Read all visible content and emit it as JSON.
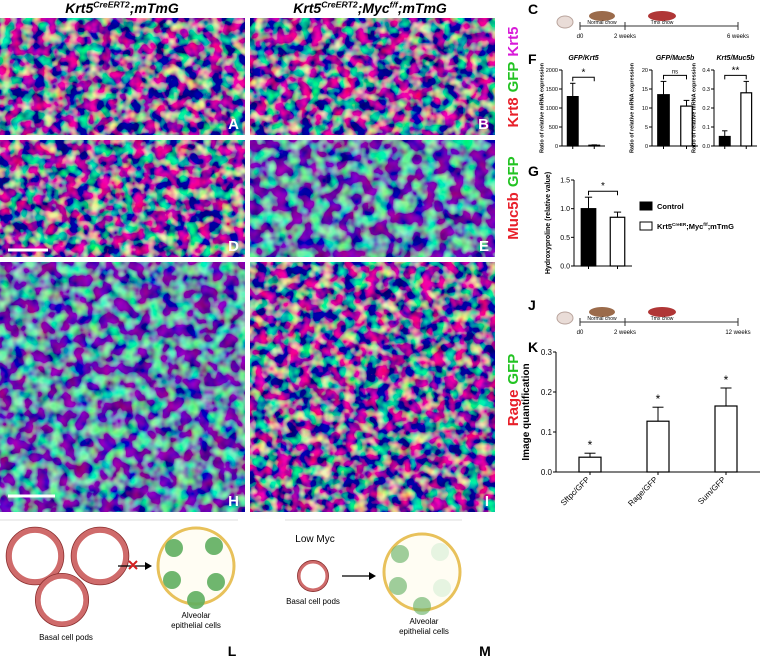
{
  "titles": {
    "left": [
      "Krt5",
      "CreERT2",
      ";mTmG"
    ],
    "right": [
      "Krt5",
      "CreERT2",
      ";Myc",
      "f/f",
      ";mTmG"
    ]
  },
  "panel_letters": [
    "A",
    "B",
    "D",
    "E",
    "H",
    "I"
  ],
  "side_labels": [
    [
      {
        "text": "Krt8",
        "color": "#e8202a"
      },
      {
        "text": "GFP",
        "color": "#22c322"
      },
      {
        "text": "Krt5",
        "color": "#d81ad8"
      }
    ],
    [
      {
        "text": "Muc5b",
        "color": "#e8202a"
      },
      {
        "text": "GFP",
        "color": "#22c322"
      }
    ],
    [
      {
        "text": "Rage",
        "color": "#e8202a"
      },
      {
        "text": "GFP",
        "color": "#22c322"
      }
    ]
  ],
  "timelines": [
    {
      "letter": "C",
      "start": "d0",
      "mid": "2 weeks",
      "end": "6 weeks",
      "phase1": "Normal chow",
      "phase2": "Tmx chow"
    },
    {
      "letter": "J",
      "start": "d0",
      "mid": "2 weeks",
      "end": "12 weeks",
      "phase1": "Normal chow",
      "phase2": "Tmx chow"
    }
  ],
  "chart_letters": [
    "F",
    "G",
    "K"
  ],
  "chart_data": [
    {
      "type": "bar",
      "title": "GFP/Krt5",
      "ylabel": "Ratio of relative mRNA expression",
      "categories": [
        null,
        null
      ],
      "values": [
        1300,
        20
      ],
      "errors": [
        350,
        10
      ],
      "colors": [
        "#000000",
        "#ffffff"
      ],
      "ylim": [
        0,
        2000
      ],
      "yticks": [
        0,
        500,
        1000,
        1500,
        2000
      ],
      "significance": "*"
    },
    {
      "type": "bar",
      "title": "GFP/Muc5b",
      "ylabel": "Ratio of relative mRNA expression",
      "categories": [
        null,
        null
      ],
      "values": [
        13.5,
        10.5
      ],
      "errors": [
        3.5,
        1.5
      ],
      "colors": [
        "#000000",
        "#ffffff"
      ],
      "ylim": [
        0,
        20
      ],
      "yticks": [
        0,
        5,
        10,
        15,
        20
      ],
      "significance": "ns"
    },
    {
      "type": "bar",
      "title": "Krt5/Muc5b",
      "ylabel": "Ratio of relative mRNA expression",
      "categories": [
        null,
        null
      ],
      "values": [
        0.05,
        0.28
      ],
      "errors": [
        0.03,
        0.06
      ],
      "colors": [
        "#000000",
        "#ffffff"
      ],
      "ylim": [
        0,
        0.4
      ],
      "yticks": [
        {
          "value": 0,
          "label": "0.0"
        },
        0.1,
        0.2,
        0.3,
        0.4
      ],
      "significance": "**"
    },
    {
      "type": "bar",
      "ylabel": "Hydroxyproline (relative value)",
      "categories": [
        null,
        null
      ],
      "values": [
        1.0,
        0.85
      ],
      "errors": [
        0.2,
        0.09
      ],
      "colors": [
        "#000000",
        "#ffffff"
      ],
      "ylim": [
        0,
        1.5
      ],
      "yticks": [
        {
          "value": 0,
          "label": "0.0"
        },
        0.5,
        {
          "value": 1,
          "label": "1.0"
        },
        1.5
      ],
      "significance": "*"
    },
    {
      "type": "bar",
      "ylabel": "Image quantification",
      "categories": [
        "Sftpc/GFP",
        "Rage/GFP",
        "Sum/GFP"
      ],
      "values": [
        0.037,
        0.127,
        0.165
      ],
      "errors": [
        0.01,
        0.035,
        0.045
      ],
      "colors": [
        "#ffffff",
        "#ffffff",
        "#ffffff"
      ],
      "ylim": [
        0,
        0.3
      ],
      "yticks": [
        {
          "value": 0,
          "label": "0.0"
        },
        0.1,
        0.2,
        0.3
      ],
      "significance_labels": [
        "*",
        "*",
        "*"
      ]
    }
  ],
  "legend": [
    {
      "parts": [
        "Control"
      ],
      "color": "#000000"
    },
    {
      "parts": [
        "Krt5",
        "CreER",
        ";Myc",
        "f/f",
        ";mTmG"
      ],
      "color": "#ffffff"
    }
  ],
  "diagram_l": {
    "letter": "L",
    "pods": "Basal cell pods",
    "cells": [
      "Alveolar",
      "epithelial cells"
    ]
  },
  "diagram_m": {
    "letter": "M",
    "condition": "Low Myc",
    "pods": "Basal cell pods",
    "cells": [
      "Alveolar",
      "epithelial cells"
    ]
  }
}
